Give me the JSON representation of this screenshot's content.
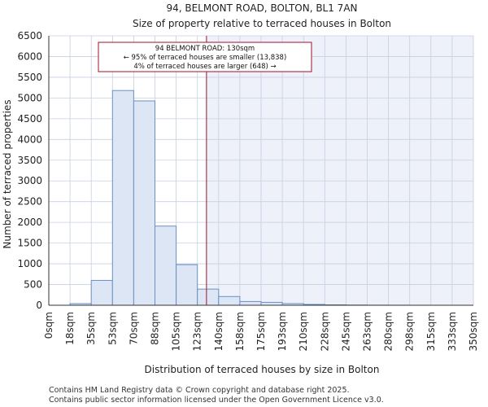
{
  "chart_data": {
    "type": "bar",
    "title": "94, BELMONT ROAD, BOLTON, BL1 7AN",
    "subtitle": "Size of property relative to terraced houses in Bolton",
    "xlabel": "Distribution of terraced houses by size in Bolton",
    "ylabel": "Number of terraced properties",
    "ylim": [
      0,
      6500
    ],
    "yticks": [
      0,
      500,
      1000,
      1500,
      2000,
      2500,
      3000,
      3500,
      4000,
      4500,
      5000,
      5500,
      6000,
      6500
    ],
    "bin_edges": [
      0,
      17.5,
      35,
      52.5,
      70,
      87.5,
      105,
      122.5,
      140,
      157.5,
      175,
      192.5,
      210,
      227.5,
      245,
      262.5,
      280,
      297.5,
      315,
      332.5,
      350
    ],
    "xtick_labels": [
      "0sqm",
      "18sqm",
      "35sqm",
      "53sqm",
      "70sqm",
      "88sqm",
      "105sqm",
      "123sqm",
      "140sqm",
      "158sqm",
      "175sqm",
      "193sqm",
      "210sqm",
      "228sqm",
      "245sqm",
      "263sqm",
      "280sqm",
      "298sqm",
      "315sqm",
      "333sqm",
      "350sqm"
    ],
    "values": [
      0,
      40,
      600,
      5180,
      4930,
      1910,
      980,
      390,
      210,
      90,
      70,
      40,
      20,
      10,
      5,
      2,
      1,
      0,
      0,
      0
    ],
    "property_size": 130,
    "annotation": {
      "line1": "94 BELMONT ROAD: 130sqm",
      "line2": "← 95% of terraced houses are smaller (13,838)",
      "line3": "4% of terraced houses are larger (648) →"
    },
    "colors": {
      "bar_fill": "#dce6f4",
      "bar_edge": "#6b8fc4",
      "highlight_region": "#eef0fa",
      "marker_line": "#a0102a",
      "grid": "#c7cfe0"
    }
  },
  "footer": {
    "line1": "Contains HM Land Registry data © Crown copyright and database right 2025.",
    "line2": "Contains public sector information licensed under the Open Government Licence v3.0."
  }
}
